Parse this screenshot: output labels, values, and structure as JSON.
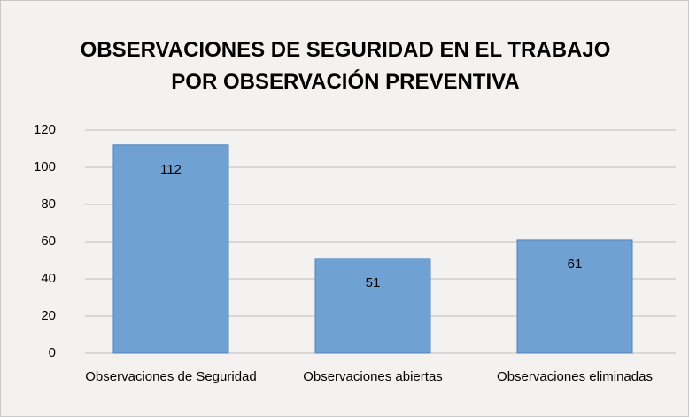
{
  "chart_data": {
    "type": "bar",
    "title": "OBSERVACIONES DE SEGURIDAD EN EL TRABAJO POR OBSERVACIÓN PREVENTIVA",
    "categories": [
      "Observaciones de Seguridad",
      "Observaciones abiertas",
      "Observaciones eliminadas"
    ],
    "values": [
      112,
      51,
      61
    ],
    "color": "#70a1d3",
    "ylim": [
      0,
      120
    ],
    "yticks": [
      0,
      20,
      40,
      60,
      80,
      100,
      120
    ],
    "grid": true
  }
}
